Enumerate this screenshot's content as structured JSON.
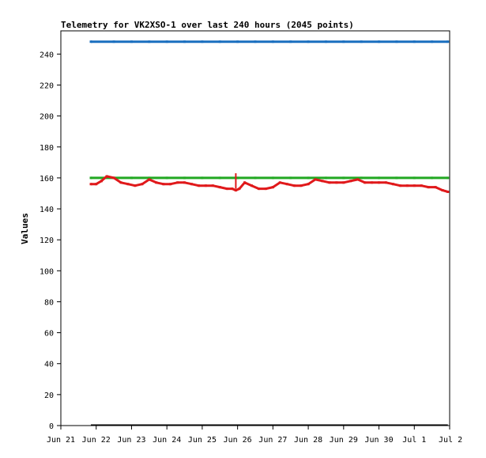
{
  "chart_data": {
    "type": "line",
    "title": "Telemetry for VK2XSO-1 over last 240 hours (2045 points)",
    "xlabel": "",
    "ylabel": "Values",
    "ylim": [
      0,
      255
    ],
    "yticks": [
      0,
      20,
      40,
      60,
      80,
      100,
      120,
      140,
      160,
      180,
      200,
      220,
      240
    ],
    "xlim": [
      0,
      11
    ],
    "xticks": [
      "Jun 21",
      "Jun 22",
      "Jun 23",
      "Jun 24",
      "Jun 25",
      "Jun 26",
      "Jun 27",
      "Jun 28",
      "Jun 29",
      "Jun 30",
      "Jul 1",
      "Jul 2"
    ],
    "grid": false,
    "legend": "none",
    "series": [
      {
        "color": "#1a6fbf",
        "x": [
          0.85,
          1.5,
          2.0,
          2.5,
          3.0,
          3.5,
          4.0,
          4.5,
          5.0,
          5.5,
          6.0,
          6.5,
          7.0,
          7.5,
          8.0,
          8.5,
          9.0,
          9.5,
          10.0,
          10.5,
          10.95
        ],
        "values": [
          248,
          248,
          248,
          248,
          248,
          248,
          248,
          248,
          248,
          248,
          248,
          248,
          248,
          248,
          248,
          248,
          248,
          248,
          248,
          248,
          248
        ]
      },
      {
        "color": "#22a822",
        "x": [
          0.85,
          1.5,
          2.0,
          2.5,
          3.0,
          3.5,
          4.0,
          4.5,
          5.0,
          5.5,
          6.0,
          6.5,
          7.0,
          7.5,
          8.0,
          8.5,
          9.0,
          9.5,
          10.0,
          10.5,
          10.95
        ],
        "values": [
          160,
          160,
          160,
          160,
          160,
          160,
          160,
          160,
          160,
          160,
          160,
          160,
          160,
          160,
          160,
          160,
          160,
          160,
          160,
          160,
          160
        ]
      },
      {
        "color": "#e0191b",
        "x": [
          0.85,
          1.0,
          1.15,
          1.3,
          1.5,
          1.7,
          1.9,
          2.1,
          2.3,
          2.5,
          2.7,
          2.9,
          3.1,
          3.3,
          3.5,
          3.7,
          3.9,
          4.1,
          4.3,
          4.5,
          4.7,
          4.85,
          4.95,
          5.05,
          5.2,
          5.4,
          5.6,
          5.8,
          6.0,
          6.2,
          6.4,
          6.6,
          6.8,
          7.0,
          7.2,
          7.4,
          7.6,
          7.8,
          8.0,
          8.2,
          8.4,
          8.6,
          8.8,
          9.0,
          9.2,
          9.4,
          9.6,
          9.8,
          10.0,
          10.2,
          10.4,
          10.6,
          10.8,
          10.95
        ],
        "values": [
          156,
          156,
          158,
          161,
          160,
          157,
          156,
          155,
          156,
          159,
          157,
          156,
          156,
          157,
          157,
          156,
          155,
          155,
          155,
          154,
          153,
          153,
          152,
          153,
          157,
          155,
          153,
          153,
          154,
          157,
          156,
          155,
          155,
          156,
          159,
          158,
          157,
          157,
          157,
          158,
          159,
          157,
          157,
          157,
          157,
          156,
          155,
          155,
          155,
          155,
          154,
          154,
          152,
          151
        ]
      }
    ],
    "annotations": [
      {
        "type": "spike",
        "color": "#e0191b",
        "x": 4.95,
        "from": 153,
        "to": 163
      }
    ]
  }
}
